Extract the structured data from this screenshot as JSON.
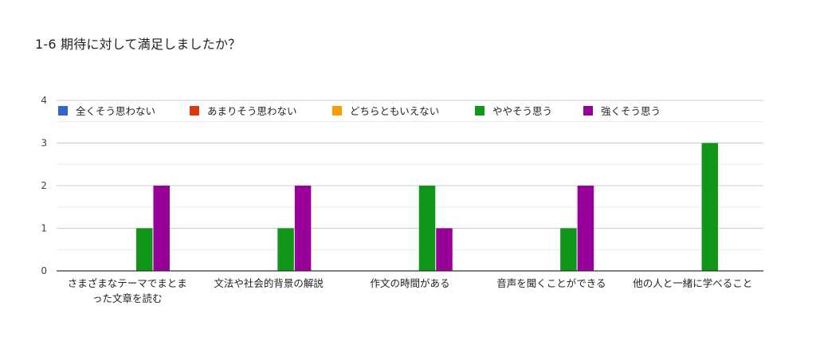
{
  "title": "1-6 期待に対して満足しましたか？",
  "chart_data": {
    "type": "bar",
    "title": "1-6 期待に対して満足しましたか？",
    "xlabel": "",
    "ylabel": "",
    "ylim": [
      0,
      4
    ],
    "y_ticks": [
      0,
      1,
      2,
      3,
      4
    ],
    "grid": true,
    "legend_position": "top",
    "categories": [
      [
        "さまざまなテーマでまとま",
        "った文章を読む"
      ],
      [
        "文法や社会的背景の解説"
      ],
      [
        "作文の時間がある"
      ],
      [
        "音声を聞くことができる"
      ],
      [
        "他の人と一緒に学べること"
      ]
    ],
    "series": [
      {
        "name": "全くそう思わない",
        "color": "#3366cc",
        "values": [
          0,
          0,
          0,
          0,
          0
        ]
      },
      {
        "name": "あまりそう思わない",
        "color": "#dc3912",
        "values": [
          0,
          0,
          0,
          0,
          0
        ]
      },
      {
        "name": "どちらともいえない",
        "color": "#ff9900",
        "values": [
          0,
          0,
          0,
          0,
          0
        ]
      },
      {
        "name": "ややそう思う",
        "color": "#109618",
        "values": [
          1,
          1,
          2,
          1,
          3
        ]
      },
      {
        "name": "強くそう思う",
        "color": "#990099",
        "values": [
          2,
          2,
          1,
          2,
          0
        ]
      }
    ]
  }
}
